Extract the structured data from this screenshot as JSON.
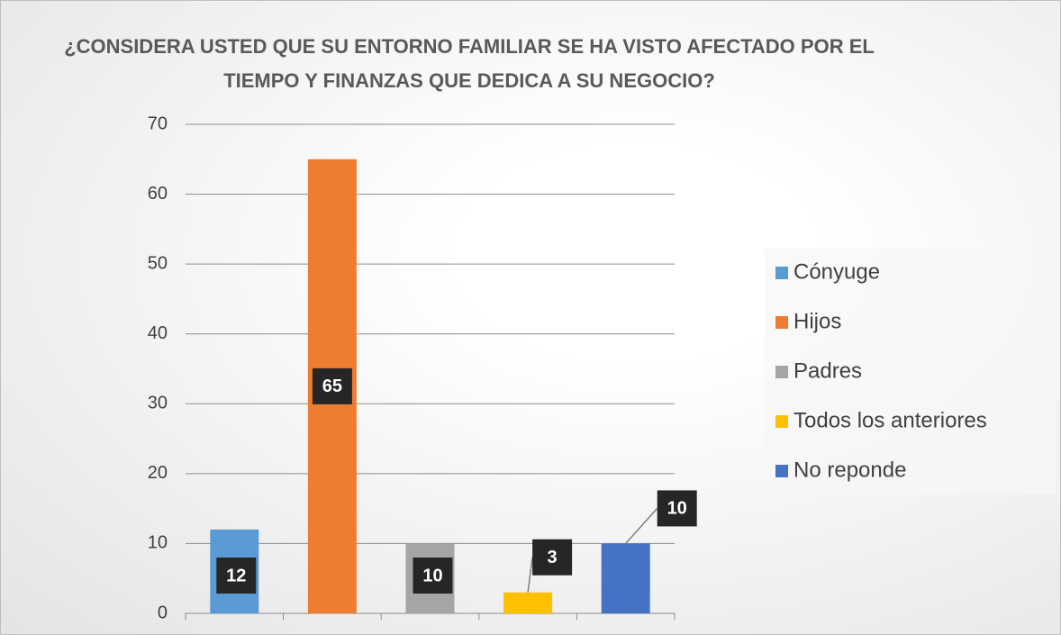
{
  "chart_data": {
    "type": "bar",
    "title": "¿CONSIDERA USTED QUE SU ENTORNO FAMILIAR SE HA VISTO AFECTADO POR EL TIEMPO Y FINANZAS QUE DEDICA A SU NEGOCIO?",
    "categories": [
      "Cónyuge",
      "Hijos",
      "Padres",
      "Todos los anteriores",
      "No reponde"
    ],
    "values": [
      12,
      65,
      10,
      3,
      10
    ],
    "colors": [
      "#5b9bd5",
      "#ed7d31",
      "#a5a5a5",
      "#ffc000",
      "#4472c4"
    ],
    "ylim": [
      0,
      70
    ],
    "yticks": [
      0,
      10,
      20,
      30,
      40,
      50,
      60,
      70
    ],
    "grid": true,
    "legend": "right"
  }
}
